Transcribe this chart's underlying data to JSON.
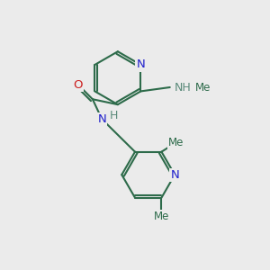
{
  "bg_color": "#ebebeb",
  "bond_color": "#2d6b4a",
  "N_color": "#2020cc",
  "O_color": "#cc2020",
  "H_color": "#5a8a7a",
  "line_width": 1.5,
  "figsize": [
    3.0,
    3.0
  ],
  "dpi": 100,
  "xlim": [
    0,
    10
  ],
  "ylim": [
    0,
    10
  ]
}
